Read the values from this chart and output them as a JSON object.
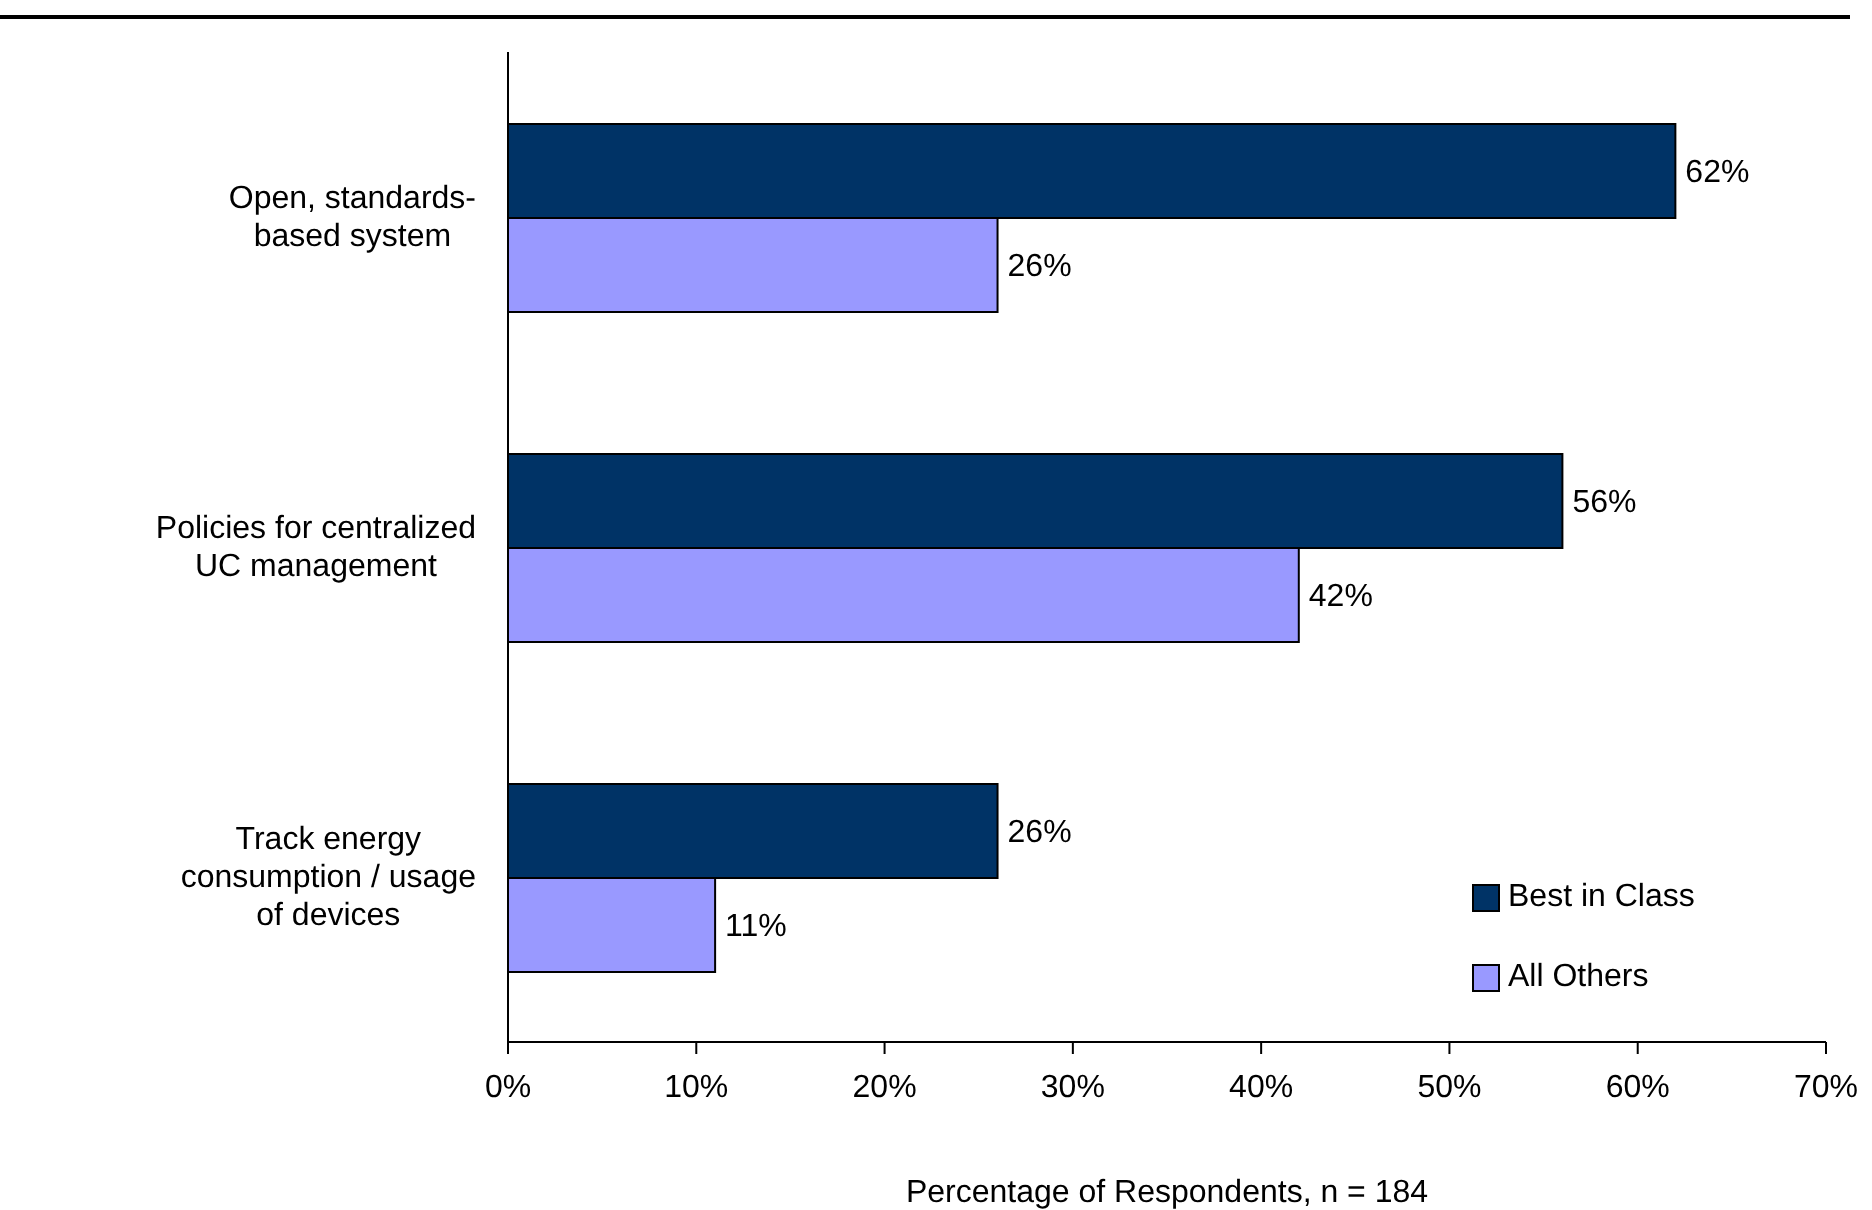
{
  "chart_data": {
    "type": "bar",
    "orientation": "horizontal",
    "xlabel": "Percentage of Respondents,  n = 184",
    "categories": [
      "Open, standards-\nbased system",
      "Policies for centralized\nUC management",
      "Track energy\nconsumption / usage\nof devices"
    ],
    "series": [
      {
        "name": "Best in Class",
        "color": "#003366",
        "values": [
          62,
          56,
          26
        ],
        "value_labels": [
          "62%",
          "56%",
          "26%"
        ]
      },
      {
        "name": "All Others",
        "color": "#9999ff",
        "values": [
          26,
          42,
          11
        ],
        "value_labels": [
          "26%",
          "42%",
          "11%"
        ]
      }
    ],
    "xlim": [
      0,
      70
    ],
    "xticks": [
      {
        "value": 0,
        "label": "0%"
      },
      {
        "value": 10,
        "label": "10%"
      },
      {
        "value": 20,
        "label": "20%"
      },
      {
        "value": 30,
        "label": "30%"
      },
      {
        "value": 40,
        "label": "40%"
      },
      {
        "value": 50,
        "label": "50%"
      },
      {
        "value": 60,
        "label": "60%"
      },
      {
        "value": 70,
        "label": "70%"
      }
    ],
    "legend": "bottom right",
    "grid": false
  }
}
